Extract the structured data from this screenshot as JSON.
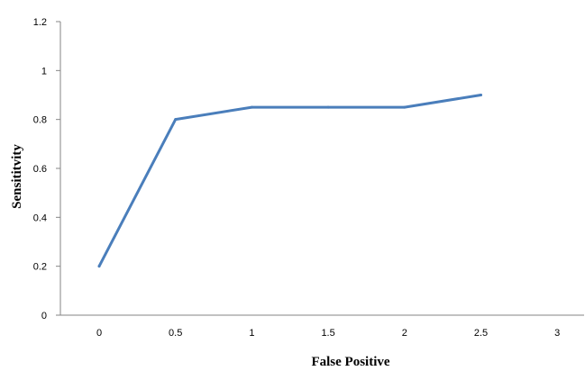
{
  "chart_data": {
    "type": "line",
    "title": "",
    "xlabel": "False Positive",
    "ylabel": "Sensititvity",
    "x_ticks": [
      "0",
      "0.5",
      "1",
      "1.5",
      "2",
      "2.5",
      "3"
    ],
    "y_ticks": [
      "0",
      "0.2",
      "0.4",
      "0.6",
      "0.8",
      "1",
      "1.2"
    ],
    "ylim": [
      0,
      1.2
    ],
    "grid": false,
    "legend": "none",
    "series": [
      {
        "color": "#4a7ebb",
        "points": [
          {
            "x": "0",
            "y": 0.2
          },
          {
            "x": "0.5",
            "y": 0.8
          },
          {
            "x": "1",
            "y": 0.85
          },
          {
            "x": "1.5",
            "y": 0.85
          },
          {
            "x": "2",
            "y": 0.85
          },
          {
            "x": "2.5",
            "y": 0.9
          }
        ]
      }
    ]
  }
}
